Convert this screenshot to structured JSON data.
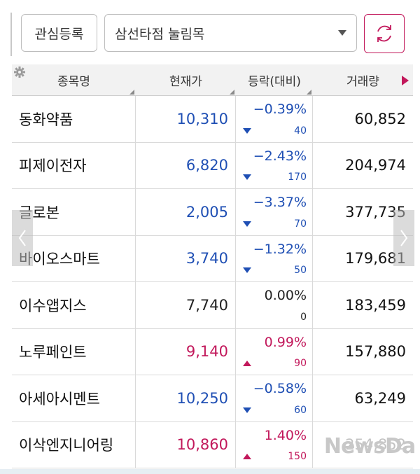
{
  "toolbar": {
    "watch_button_label": "관심등록",
    "group_select_value": "삼선타점 눌림목"
  },
  "table": {
    "headers": [
      "종목명",
      "현재가",
      "등락(대비)",
      "거래량"
    ],
    "rows": [
      {
        "name": "동화약품",
        "price": "10,310",
        "rate": "−0.39%",
        "diff": "40",
        "direction": "down",
        "volume": "60,852"
      },
      {
        "name": "피제이전자",
        "price": "6,820",
        "rate": "−2.43%",
        "diff": "170",
        "direction": "down",
        "volume": "204,974"
      },
      {
        "name": "글로본",
        "price": "2,005",
        "rate": "−3.37%",
        "diff": "70",
        "direction": "down",
        "volume": "377,735"
      },
      {
        "name": "바이오스마트",
        "price": "3,740",
        "rate": "−1.32%",
        "diff": "50",
        "direction": "down",
        "volume": "179,681"
      },
      {
        "name": "이수앱지스",
        "price": "7,740",
        "rate": "0.00%",
        "diff": "0",
        "direction": "flat",
        "volume": "183,459"
      },
      {
        "name": "노루페인트",
        "price": "9,140",
        "rate": "0.99%",
        "diff": "90",
        "direction": "up",
        "volume": "157,880"
      },
      {
        "name": "아세아시멘트",
        "price": "10,250",
        "rate": "−0.58%",
        "diff": "60",
        "direction": "down",
        "volume": "63,249"
      },
      {
        "name": "이삭엔지니어링",
        "price": "10,860",
        "rate": "1.40%",
        "diff": "150",
        "direction": "up",
        "volume": "254,852"
      }
    ]
  },
  "colors": {
    "down": "#1f4fb4",
    "up": "#c2185b",
    "flat": "#222222"
  },
  "icons": {
    "refresh": "refresh-icon",
    "settings": "gear-icon",
    "dropdown": "caret-down-icon"
  },
  "watermark": "NewsDa"
}
